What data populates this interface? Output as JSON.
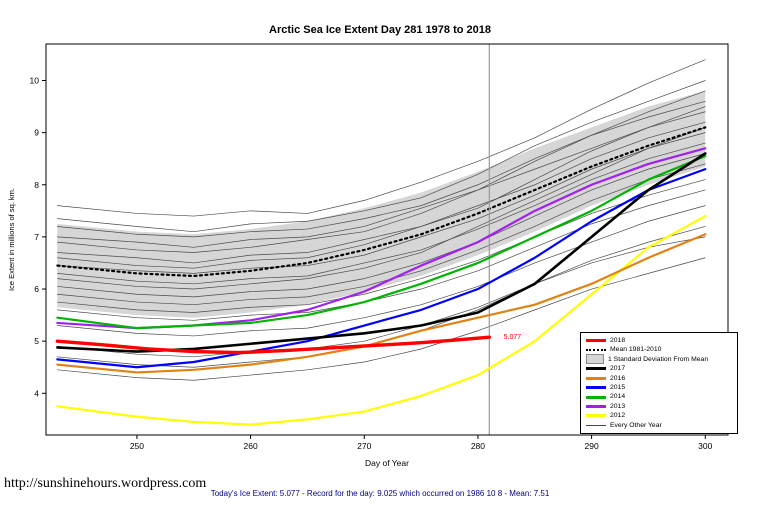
{
  "page": {
    "title": "Arctic Sea Ice Extent Day 281 1978 to 2018",
    "url_text": "http://sunshinehours.wordpress.com",
    "caption": "Today's Ice Extent: 5.077  - Record for the day: 9.025 which occurred on 1986 10 8  - Mean: 7.51"
  },
  "chart_data": {
    "type": "line",
    "title": "Arctic Sea Ice Extent Day 281 1978 to 2018",
    "xlabel": "Day of Year",
    "ylabel": "Ice Extent in millions of sq. km.",
    "xlim": [
      242,
      302
    ],
    "ylim": [
      3.2,
      10.7
    ],
    "xticks": [
      250,
      260,
      270,
      280,
      290,
      300
    ],
    "yticks": [
      4,
      5,
      6,
      7,
      8,
      9,
      10
    ],
    "grid": false,
    "legend_position": "bottom-right",
    "marker_day": 281,
    "annotation": {
      "text": "5.077",
      "x": 282,
      "y": 5.077,
      "color": "#FF0000"
    },
    "x": [
      243,
      250,
      255,
      260,
      265,
      270,
      275,
      280,
      285,
      290,
      295,
      300
    ],
    "band": {
      "name": "1 Standard Deviation From Mean",
      "color": "#D6D6D6",
      "upper": [
        7.25,
        7.1,
        7.05,
        7.15,
        7.3,
        7.55,
        7.85,
        8.25,
        8.7,
        9.1,
        9.5,
        9.8
      ],
      "lower": [
        5.65,
        5.5,
        5.45,
        5.55,
        5.7,
        5.95,
        6.25,
        6.65,
        7.1,
        7.6,
        8.0,
        8.35
      ]
    },
    "mean": {
      "name": "Mean 1981-2010",
      "color": "#000000",
      "width": 2.2,
      "dash": "2 3.5",
      "y": [
        6.45,
        6.3,
        6.25,
        6.35,
        6.5,
        6.75,
        7.05,
        7.45,
        7.9,
        8.35,
        8.75,
        9.1
      ]
    },
    "series": [
      {
        "name": "2012",
        "color": "#FFFF00",
        "width": 2.2,
        "y": [
          3.75,
          3.55,
          3.45,
          3.4,
          3.5,
          3.65,
          3.95,
          4.35,
          5.0,
          5.9,
          6.8,
          7.4
        ]
      },
      {
        "name": "2013",
        "color": "#A020F0",
        "width": 2.2,
        "y": [
          5.35,
          5.25,
          5.3,
          5.4,
          5.6,
          5.95,
          6.45,
          6.9,
          7.5,
          8.0,
          8.4,
          8.7
        ]
      },
      {
        "name": "2014",
        "color": "#00B400",
        "width": 2.2,
        "y": [
          5.45,
          5.25,
          5.3,
          5.35,
          5.5,
          5.75,
          6.1,
          6.5,
          7.0,
          7.5,
          8.1,
          8.55
        ]
      },
      {
        "name": "2015",
        "color": "#0000FF",
        "width": 2.2,
        "y": [
          4.65,
          4.5,
          4.6,
          4.8,
          5.0,
          5.3,
          5.6,
          6.0,
          6.6,
          7.3,
          7.9,
          8.3
        ]
      },
      {
        "name": "2016",
        "color": "#E08214",
        "width": 2.2,
        "y": [
          4.55,
          4.4,
          4.45,
          4.55,
          4.7,
          4.9,
          5.2,
          5.45,
          5.7,
          6.1,
          6.6,
          7.05
        ]
      },
      {
        "name": "2017",
        "color": "#000000",
        "width": 2.6,
        "y": [
          4.88,
          4.8,
          4.85,
          4.95,
          5.05,
          5.15,
          5.3,
          5.55,
          6.1,
          7.0,
          7.9,
          8.6
        ]
      },
      {
        "name": "2018",
        "color": "#FF0000",
        "width": 3.4,
        "x": [
          243,
          247,
          251,
          255,
          259,
          263,
          267,
          271,
          275,
          278,
          281
        ],
        "y": [
          5.0,
          4.93,
          4.85,
          4.8,
          4.78,
          4.82,
          4.87,
          4.92,
          4.97,
          5.02,
          5.077
        ]
      }
    ],
    "other_years": {
      "name": "Every Other Year",
      "color": "#4A4A4A",
      "width": 0.7,
      "lines": [
        [
          7.6,
          7.45,
          7.4,
          7.5,
          7.45,
          7.7,
          8.05,
          8.45,
          8.9,
          9.45,
          9.95,
          10.4
        ],
        [
          7.35,
          7.2,
          7.1,
          7.25,
          7.3,
          7.5,
          7.75,
          8.2,
          8.75,
          9.2,
          9.6,
          10.0
        ],
        [
          7.2,
          7.05,
          7.0,
          7.1,
          7.15,
          7.35,
          7.6,
          8.0,
          8.5,
          8.95,
          9.3,
          9.6
        ],
        [
          7.0,
          6.9,
          6.8,
          6.95,
          7.0,
          7.2,
          7.55,
          7.9,
          8.3,
          8.7,
          9.1,
          9.4
        ],
        [
          6.9,
          6.75,
          6.7,
          6.8,
          6.95,
          7.1,
          7.45,
          7.9,
          8.45,
          8.95,
          9.4,
          9.8
        ],
        [
          6.7,
          6.6,
          6.5,
          6.65,
          6.7,
          6.95,
          7.2,
          7.6,
          8.0,
          8.5,
          8.9,
          9.2
        ],
        [
          6.6,
          6.45,
          6.4,
          6.55,
          6.6,
          6.85,
          7.2,
          7.55,
          8.1,
          8.65,
          9.1,
          9.5
        ],
        [
          6.45,
          6.35,
          6.3,
          6.4,
          6.45,
          6.65,
          7.0,
          7.35,
          7.8,
          8.3,
          8.7,
          9.0
        ],
        [
          6.3,
          6.15,
          6.1,
          6.2,
          6.25,
          6.5,
          6.75,
          7.15,
          7.6,
          8.1,
          8.5,
          8.8
        ],
        [
          6.2,
          6.05,
          6.0,
          6.1,
          6.2,
          6.4,
          6.7,
          7.2,
          7.7,
          8.2,
          8.7,
          9.1
        ],
        [
          6.05,
          5.9,
          5.85,
          5.95,
          6.0,
          6.2,
          6.5,
          6.9,
          7.4,
          7.9,
          8.3,
          8.6
        ],
        [
          5.9,
          5.75,
          5.7,
          5.8,
          5.85,
          6.05,
          6.35,
          6.75,
          7.2,
          7.7,
          8.1,
          8.4
        ],
        [
          5.75,
          5.6,
          5.55,
          5.65,
          5.7,
          5.9,
          6.2,
          6.55,
          7.0,
          7.45,
          7.8,
          8.1
        ],
        [
          5.6,
          5.45,
          5.4,
          5.5,
          5.55,
          5.75,
          6.0,
          6.35,
          6.8,
          7.25,
          7.6,
          7.9
        ],
        [
          5.3,
          5.15,
          5.1,
          5.2,
          5.25,
          5.45,
          5.7,
          6.05,
          6.5,
          6.9,
          7.3,
          7.6
        ],
        [
          4.9,
          4.75,
          4.7,
          4.8,
          4.85,
          5.0,
          5.3,
          5.65,
          6.1,
          6.5,
          6.8,
          7.0
        ],
        [
          4.7,
          4.55,
          4.5,
          4.6,
          4.7,
          4.9,
          5.2,
          5.6,
          6.1,
          6.55,
          6.9,
          7.2
        ],
        [
          4.45,
          4.3,
          4.25,
          4.35,
          4.45,
          4.6,
          4.85,
          5.2,
          5.6,
          6.0,
          6.3,
          6.6
        ]
      ]
    },
    "legend": [
      {
        "label": "2018",
        "color": "#FF0000",
        "type": "thick"
      },
      {
        "label": "Mean 1981-2010",
        "color": "#000000",
        "type": "dotted"
      },
      {
        "label": "1 Standard Deviation From Mean",
        "color": "#D6D6D6",
        "type": "box"
      },
      {
        "label": "2017",
        "color": "#000000",
        "type": "thick"
      },
      {
        "label": "2016",
        "color": "#E08214",
        "type": "thick"
      },
      {
        "label": "2015",
        "color": "#0000FF",
        "type": "thick"
      },
      {
        "label": "2014",
        "color": "#00B400",
        "type": "thick"
      },
      {
        "label": "2013",
        "color": "#A020F0",
        "type": "thick"
      },
      {
        "label": "2012",
        "color": "#FFFF00",
        "type": "thick"
      },
      {
        "label": "Every Other Year",
        "color": "#4A4A4A",
        "type": "thin"
      }
    ]
  }
}
